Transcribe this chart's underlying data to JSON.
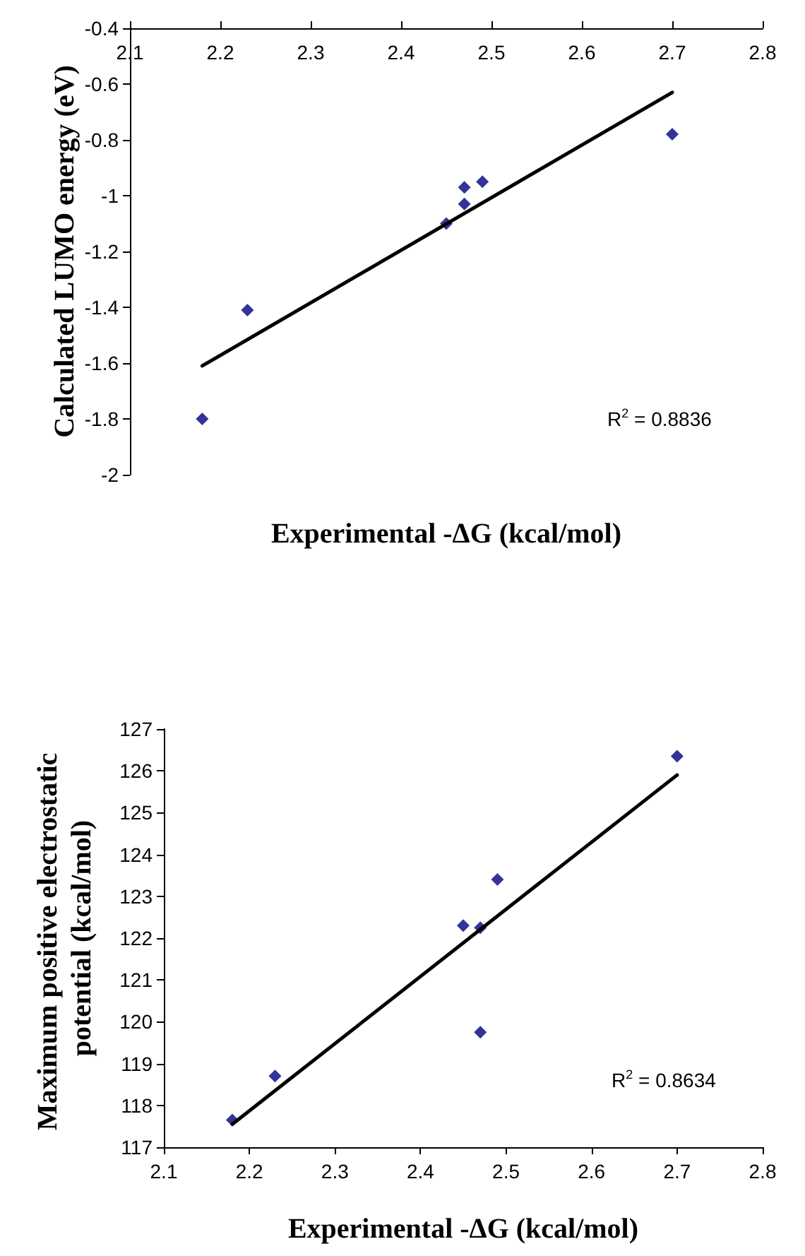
{
  "chart_data": [
    {
      "type": "scatter",
      "xlabel": "Experimental -ΔG (kcal/mol)",
      "ylabel": "Calculated LUMO energy (eV)",
      "xlim": [
        2.1,
        2.8
      ],
      "xticks": [
        2.1,
        2.2,
        2.3,
        2.4,
        2.5,
        2.6,
        2.7,
        2.8
      ],
      "ylim": [
        -2,
        -0.4
      ],
      "yticks": [
        -2,
        -1.8,
        -1.6,
        -1.4,
        -1.2,
        -1,
        -0.8,
        -0.6,
        -0.4
      ],
      "grid": false,
      "annotations": [
        "R$^{2}$ = 0.8836"
      ],
      "series": [
        {
          "color": "#000080",
          "marker": "diamond",
          "x": [
            2.18,
            2.23,
            2.45,
            2.47,
            2.47,
            2.49,
            2.7
          ],
          "values": [
            -1.8,
            -1.41,
            -1.1,
            -0.97,
            -1.03,
            -0.95,
            -0.78
          ]
        },
        {
          "type": "line",
          "marker": "none",
          "color": "#000000",
          "x": [
            2.18,
            2.7
          ],
          "values": [
            -1.61,
            -0.63
          ]
        }
      ]
    },
    {
      "type": "scatter",
      "xlabel": "Experimental -ΔG (kcal/mol)",
      "ylabel": "Maximum positive electrostatic potential (kcal/mol)",
      "xlim": [
        2.1,
        2.8
      ],
      "xticks": [
        2.1,
        2.2,
        2.3,
        2.4,
        2.5,
        2.6,
        2.7,
        2.8
      ],
      "ylim": [
        117,
        127
      ],
      "yticks": [
        117,
        118,
        119,
        120,
        121,
        122,
        123,
        124,
        125,
        126,
        127
      ],
      "grid": false,
      "annotations": [
        "R$^{2}$ = 0.8634"
      ],
      "series": [
        {
          "color": "#000080",
          "marker": "diamond",
          "x": [
            2.18,
            2.23,
            2.45,
            2.47,
            2.47,
            2.49,
            2.7
          ],
          "values": [
            117.65,
            118.7,
            122.3,
            122.25,
            119.75,
            123.4,
            126.35
          ]
        },
        {
          "type": "line",
          "marker": "none",
          "color": "#000000",
          "x": [
            2.18,
            2.7
          ],
          "values": [
            117.55,
            125.9
          ]
        }
      ]
    }
  ]
}
